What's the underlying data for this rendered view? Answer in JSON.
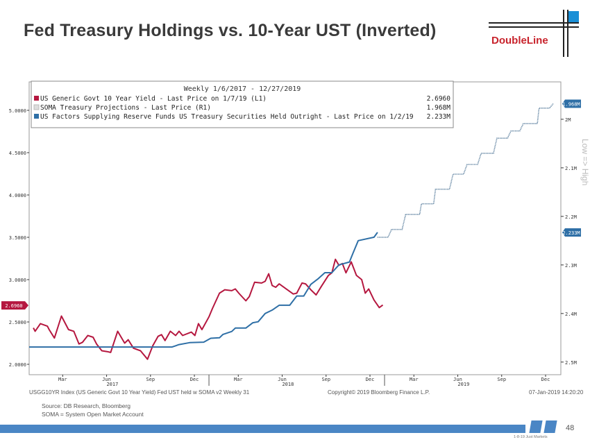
{
  "title": "Fed Treasury Holdings vs. 10-Year UST (Inverted)",
  "logo": {
    "text": "DoubleLine",
    "accent": "#1a8fd6",
    "color": "#c8232c"
  },
  "chart_data": {
    "type": "line",
    "legend": {
      "header": "Weekly 1/6/2017 - 12/27/2019",
      "placement": "top-left",
      "entries": [
        {
          "label": "US Generic Govt 10 Year Yield - Last Price on 1/7/19 (L1)",
          "value": "2.6960",
          "color": "#b5173f"
        },
        {
          "label": "SOMA Treasury Projections - Last Price (R1)",
          "value": "1.968M",
          "color": "#dddddd"
        },
        {
          "label": "US Factors Supplying Reserve Funds US Treasury Securities Held Outright - Last Price on 1/2/19",
          "value": "2.233M",
          "color": "#2e6fa6"
        }
      ]
    },
    "xlim": [
      2016.976,
      2020.004
    ],
    "left_axis": {
      "ylim": [
        1.877,
        5.336
      ],
      "ticks": [
        2.0,
        2.5,
        3.0,
        3.5,
        4.0,
        4.5,
        5.0
      ],
      "tick_labels": [
        "2.0000",
        "2.5000",
        "3.0000",
        "3.5000",
        "4.0000",
        "4.5000",
        "5.0000"
      ],
      "last_badge": "2.6960",
      "last_value": 2.696
    },
    "right_axis": {
      "inverted": true,
      "ylim": [
        1.923,
        2.526
      ],
      "ticks": [
        2.0,
        2.1,
        2.2,
        2.3,
        2.4,
        2.5
      ],
      "tick_labels": [
        "2M",
        "2.1M",
        "2.2M",
        "2.3M",
        "2.4M",
        "2.5M"
      ],
      "badges": [
        {
          "text": "1.968M",
          "value": 1.968
        },
        {
          "text": "2.233M",
          "value": 2.233
        }
      ],
      "annotation": "Low => High"
    },
    "x_ticks": [
      {
        "label": "Mar",
        "x": 2017.167
      },
      {
        "label": "Jun",
        "x": 2017.417
      },
      {
        "label": "Sep",
        "x": 2017.667
      },
      {
        "label": "Dec",
        "x": 2017.917
      },
      {
        "label": "Mar",
        "x": 2018.167
      },
      {
        "label": "Jun",
        "x": 2018.417
      },
      {
        "label": "Sep",
        "x": 2018.667
      },
      {
        "label": "Dec",
        "x": 2018.917
      },
      {
        "label": "Mar",
        "x": 2019.167
      },
      {
        "label": "Jun",
        "x": 2019.417
      },
      {
        "label": "Sep",
        "x": 2019.667
      },
      {
        "label": "Dec",
        "x": 2019.917
      }
    ],
    "year_labels": [
      {
        "label": "2017",
        "x": 2017.45
      },
      {
        "label": "2018",
        "x": 2018.45
      },
      {
        "label": "2019",
        "x": 2019.45
      }
    ],
    "series": [
      {
        "name": "US Generic Govt 10 Year Yield",
        "axis": "left",
        "color": "#b5173f",
        "style": "solid",
        "x": [
          2017.0,
          2017.01,
          2017.04,
          2017.08,
          2017.09,
          2017.12,
          2017.16,
          2017.2,
          2017.23,
          2017.26,
          2017.28,
          2017.31,
          2017.34,
          2017.36,
          2017.39,
          2017.42,
          2017.44,
          2017.48,
          2017.52,
          2017.54,
          2017.57,
          2017.61,
          2017.65,
          2017.68,
          2017.71,
          2017.73,
          2017.75,
          2017.78,
          2017.81,
          2017.83,
          2017.85,
          2017.9,
          2017.92,
          2017.94,
          2017.96,
          2018.0,
          2018.02,
          2018.06,
          2018.09,
          2018.13,
          2018.15,
          2018.17,
          2018.21,
          2018.23,
          2018.26,
          2018.3,
          2018.32,
          2018.34,
          2018.36,
          2018.38,
          2018.4,
          2018.44,
          2018.48,
          2018.5,
          2018.53,
          2018.55,
          2018.58,
          2018.61,
          2018.64,
          2018.68,
          2018.7,
          2018.72,
          2018.74,
          2018.76,
          2018.78,
          2018.81,
          2018.84,
          2018.87,
          2018.89,
          2018.91,
          2018.94,
          2018.97,
          2018.99
        ],
        "y": [
          2.43,
          2.39,
          2.48,
          2.45,
          2.41,
          2.31,
          2.57,
          2.41,
          2.39,
          2.24,
          2.26,
          2.34,
          2.32,
          2.24,
          2.16,
          2.15,
          2.14,
          2.39,
          2.25,
          2.29,
          2.19,
          2.16,
          2.06,
          2.22,
          2.33,
          2.35,
          2.28,
          2.39,
          2.34,
          2.39,
          2.34,
          2.38,
          2.34,
          2.48,
          2.41,
          2.56,
          2.66,
          2.84,
          2.88,
          2.87,
          2.89,
          2.84,
          2.75,
          2.8,
          2.97,
          2.96,
          2.98,
          3.07,
          2.93,
          2.91,
          2.95,
          2.89,
          2.83,
          2.84,
          2.96,
          2.95,
          2.88,
          2.82,
          2.92,
          3.05,
          3.08,
          3.24,
          3.17,
          3.19,
          3.08,
          3.21,
          3.05,
          3.0,
          2.84,
          2.89,
          2.76,
          2.67,
          2.7
        ]
      },
      {
        "name": "US Treasury Securities Held Outright",
        "axis": "right",
        "color": "#2e6fa6",
        "style": "solid",
        "x": [
          2016.976,
          2017.79,
          2017.83,
          2017.89,
          2017.97,
          2018.01,
          2018.06,
          2018.08,
          2018.13,
          2018.15,
          2018.21,
          2018.25,
          2018.28,
          2018.32,
          2018.36,
          2018.4,
          2018.46,
          2018.5,
          2018.54,
          2018.58,
          2018.62,
          2018.66,
          2018.7,
          2018.74,
          2018.8,
          2018.82,
          2018.85,
          2018.94,
          2018.96
        ],
        "y": [
          2.469,
          2.469,
          2.464,
          2.46,
          2.459,
          2.451,
          2.45,
          2.443,
          2.437,
          2.43,
          2.43,
          2.419,
          2.417,
          2.4,
          2.393,
          2.383,
          2.383,
          2.364,
          2.364,
          2.34,
          2.329,
          2.316,
          2.316,
          2.3,
          2.294,
          2.276,
          2.25,
          2.243,
          2.233
        ]
      },
      {
        "name": "SOMA Treasury Projections",
        "axis": "right",
        "color": "#5b7f9e",
        "style": "dotted",
        "x": [
          2018.96,
          2019.02,
          2019.04,
          2019.1,
          2019.12,
          2019.2,
          2019.21,
          2019.28,
          2019.29,
          2019.37,
          2019.39,
          2019.45,
          2019.47,
          2019.53,
          2019.55,
          2019.62,
          2019.64,
          2019.7,
          2019.72,
          2019.77,
          2019.79,
          2019.87,
          2019.88,
          2019.94,
          2019.96
        ],
        "y": [
          2.243,
          2.243,
          2.227,
          2.227,
          2.196,
          2.196,
          2.174,
          2.174,
          2.144,
          2.144,
          2.113,
          2.113,
          2.093,
          2.093,
          2.07,
          2.07,
          2.039,
          2.039,
          2.024,
          2.024,
          2.009,
          2.009,
          1.977,
          1.977,
          1.968
        ]
      }
    ]
  },
  "footer": {
    "left": "USGG10YR Index (US Generic Govt 10 Year Yield) Fed UST held w SOMA v2  Weekly 31",
    "center": "Copyright© 2019 Bloomberg Finance L.P.",
    "right": "07-Jan-2019 14:20:20"
  },
  "source": "Source: DB Research, Bloomberg",
  "note": "SOMA = System Open Market Account",
  "page_number": "48",
  "page_tag": "1-8-19 Just Markets"
}
